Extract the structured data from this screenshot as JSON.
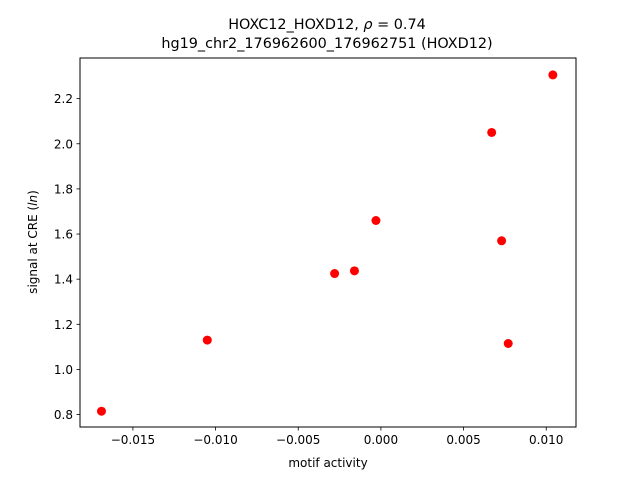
{
  "chart_data": {
    "type": "scatter",
    "title_line1": "HOXC12_HOXD12, ρ = 0.74",
    "title_line1_prefix": "HOXC12_HOXD12, ",
    "title_line1_rho": "ρ",
    "title_line1_suffix": " = 0.74",
    "title_line2": "hg19_chr2_176962600_176962751 (HOXD12)",
    "xlabel": "motif activity",
    "ylabel": "signal at CRE (ln)",
    "ylabel_prefix": "signal at CRE (",
    "ylabel_ln": "ln",
    "ylabel_suffix": ")",
    "xlim": [
      -0.0182,
      0.0118
    ],
    "ylim": [
      0.745,
      2.38
    ],
    "x_ticks": [
      -0.015,
      -0.01,
      -0.005,
      0.0,
      0.005,
      0.01
    ],
    "x_tick_labels": [
      "−0.015",
      "−0.010",
      "−0.005",
      "0.000",
      "0.005",
      "0.010"
    ],
    "y_ticks": [
      0.8,
      1.0,
      1.2,
      1.4,
      1.6,
      1.8,
      2.0,
      2.2
    ],
    "y_tick_labels": [
      "0.8",
      "1.0",
      "1.2",
      "1.4",
      "1.6",
      "1.8",
      "2.0",
      "2.2"
    ],
    "grid": false,
    "marker_color": "#ff0000",
    "points": [
      {
        "x": -0.0169,
        "y": 0.815
      },
      {
        "x": -0.0105,
        "y": 1.13
      },
      {
        "x": -0.0028,
        "y": 1.425
      },
      {
        "x": -0.0016,
        "y": 1.437
      },
      {
        "x": -0.0003,
        "y": 1.66
      },
      {
        "x": 0.0067,
        "y": 2.05
      },
      {
        "x": 0.0073,
        "y": 1.57
      },
      {
        "x": 0.0077,
        "y": 1.115
      },
      {
        "x": 0.0104,
        "y": 2.305
      }
    ]
  }
}
